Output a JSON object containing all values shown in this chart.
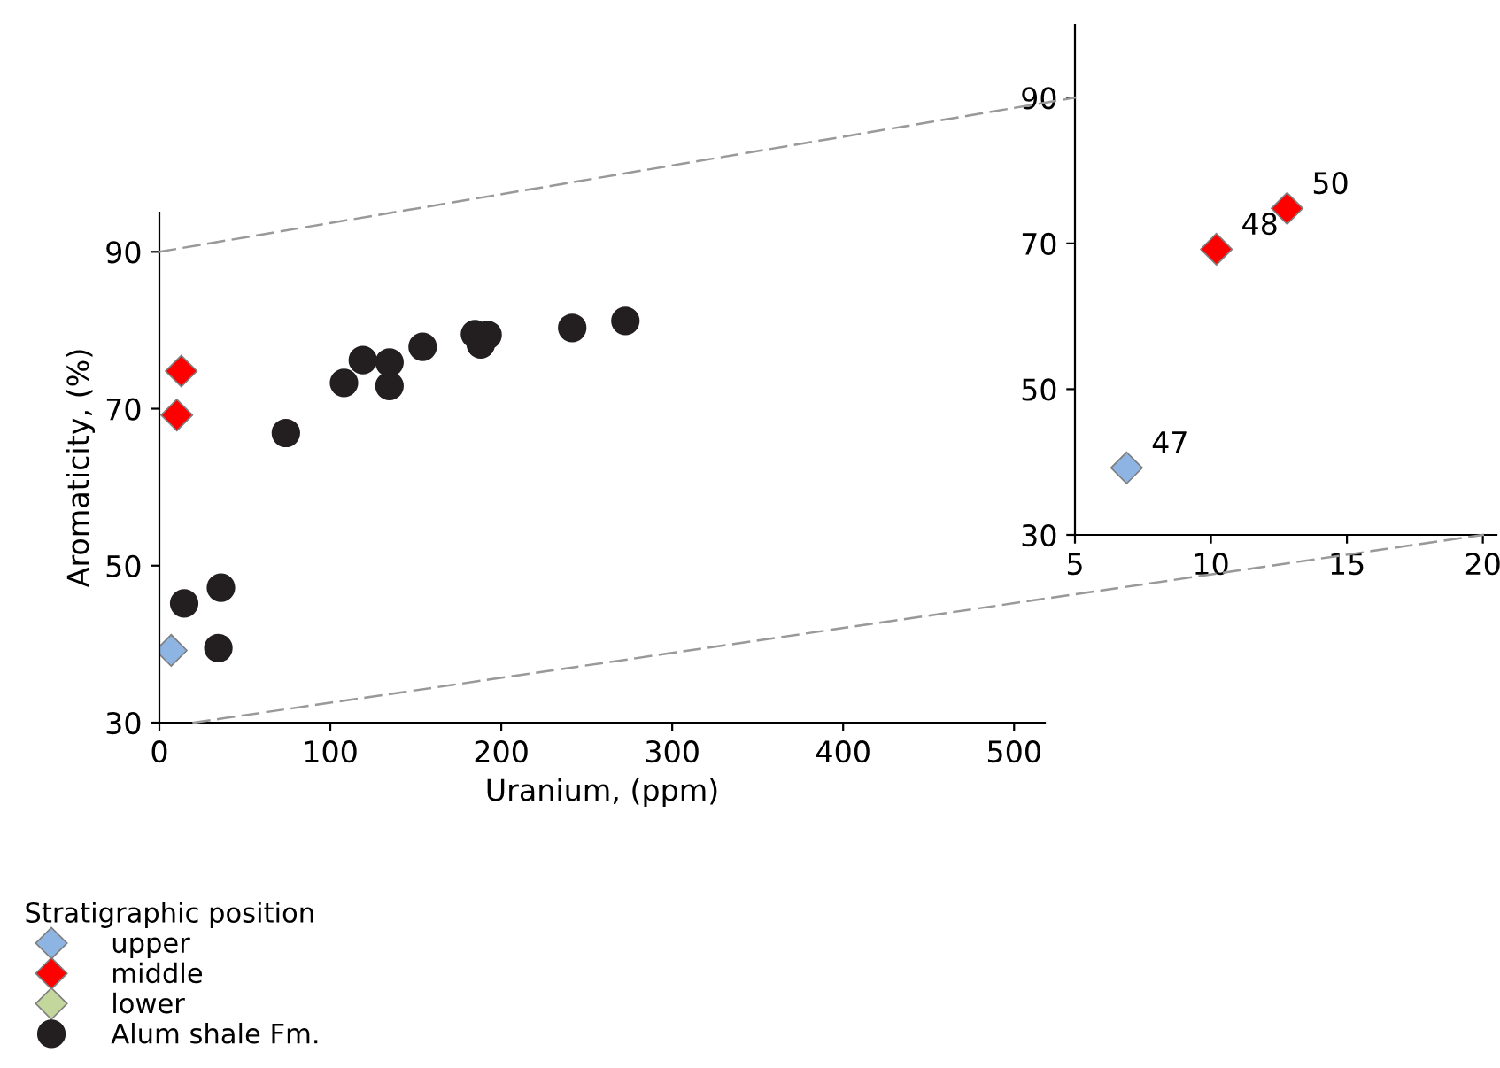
{
  "chart_data": [
    {
      "type": "scatter",
      "xlabel": "Uranium, (ppm)",
      "ylabel": "Aromaticity, (%)",
      "xlim": [
        0,
        518
      ],
      "ylim": [
        30,
        95
      ],
      "xticks": [
        0,
        100,
        200,
        300,
        400,
        500
      ],
      "yticks": [
        30,
        50,
        70,
        90
      ],
      "grid": false,
      "legend": "bottom left",
      "legend_title": "Stratigraphic position",
      "series": [
        {
          "name": "upper",
          "color": "#8db4e2",
          "marker": "diamond",
          "x": [
            6.9
          ],
          "values": [
            39.2
          ]
        },
        {
          "name": "middle",
          "color": "#ff0000",
          "marker": "diamond",
          "x": [
            10.2,
            12.8
          ],
          "values": [
            69.2,
            74.8
          ]
        },
        {
          "name": "lower",
          "color": "#c3d69b",
          "marker": "diamond"
        },
        {
          "name": "Alum shale Fm.",
          "color": "#231f20",
          "marker": "circle",
          "x": [
            14.5,
            36,
            34.5,
            74,
            108,
            119,
            134.6,
            134.6,
            154,
            184.6,
            188,
            192,
            241.5,
            272.6
          ],
          "values": [
            45.2,
            47.2,
            39.5,
            66.9,
            73.3,
            76.2,
            75.9,
            72.9,
            77.9,
            79.5,
            78.2,
            79.4,
            80.3,
            81.2
          ]
        }
      ]
    },
    {
      "type": "scatter",
      "xlim": [
        5,
        20.5
      ],
      "ylim": [
        30,
        100
      ],
      "xticks": [
        5,
        10,
        15,
        20
      ],
      "yticks": [
        30,
        50,
        70,
        90
      ],
      "grid": false,
      "legend": false,
      "series": [
        {
          "color": "#8db4e2",
          "marker": "diamond",
          "x": [
            6.9
          ],
          "values": [
            39.2
          ]
        },
        {
          "color": "#ff0000",
          "marker": "diamond",
          "x": [
            10.2,
            12.8
          ],
          "values": [
            69.2,
            74.8
          ]
        }
      ],
      "annotations": [
        {
          "text": "47",
          "x": 6.9,
          "y": 39.2
        },
        {
          "text": "48",
          "x": 10.2,
          "y": 69.2
        },
        {
          "text": "50",
          "x": 12.8,
          "y": 74.8
        }
      ]
    }
  ]
}
